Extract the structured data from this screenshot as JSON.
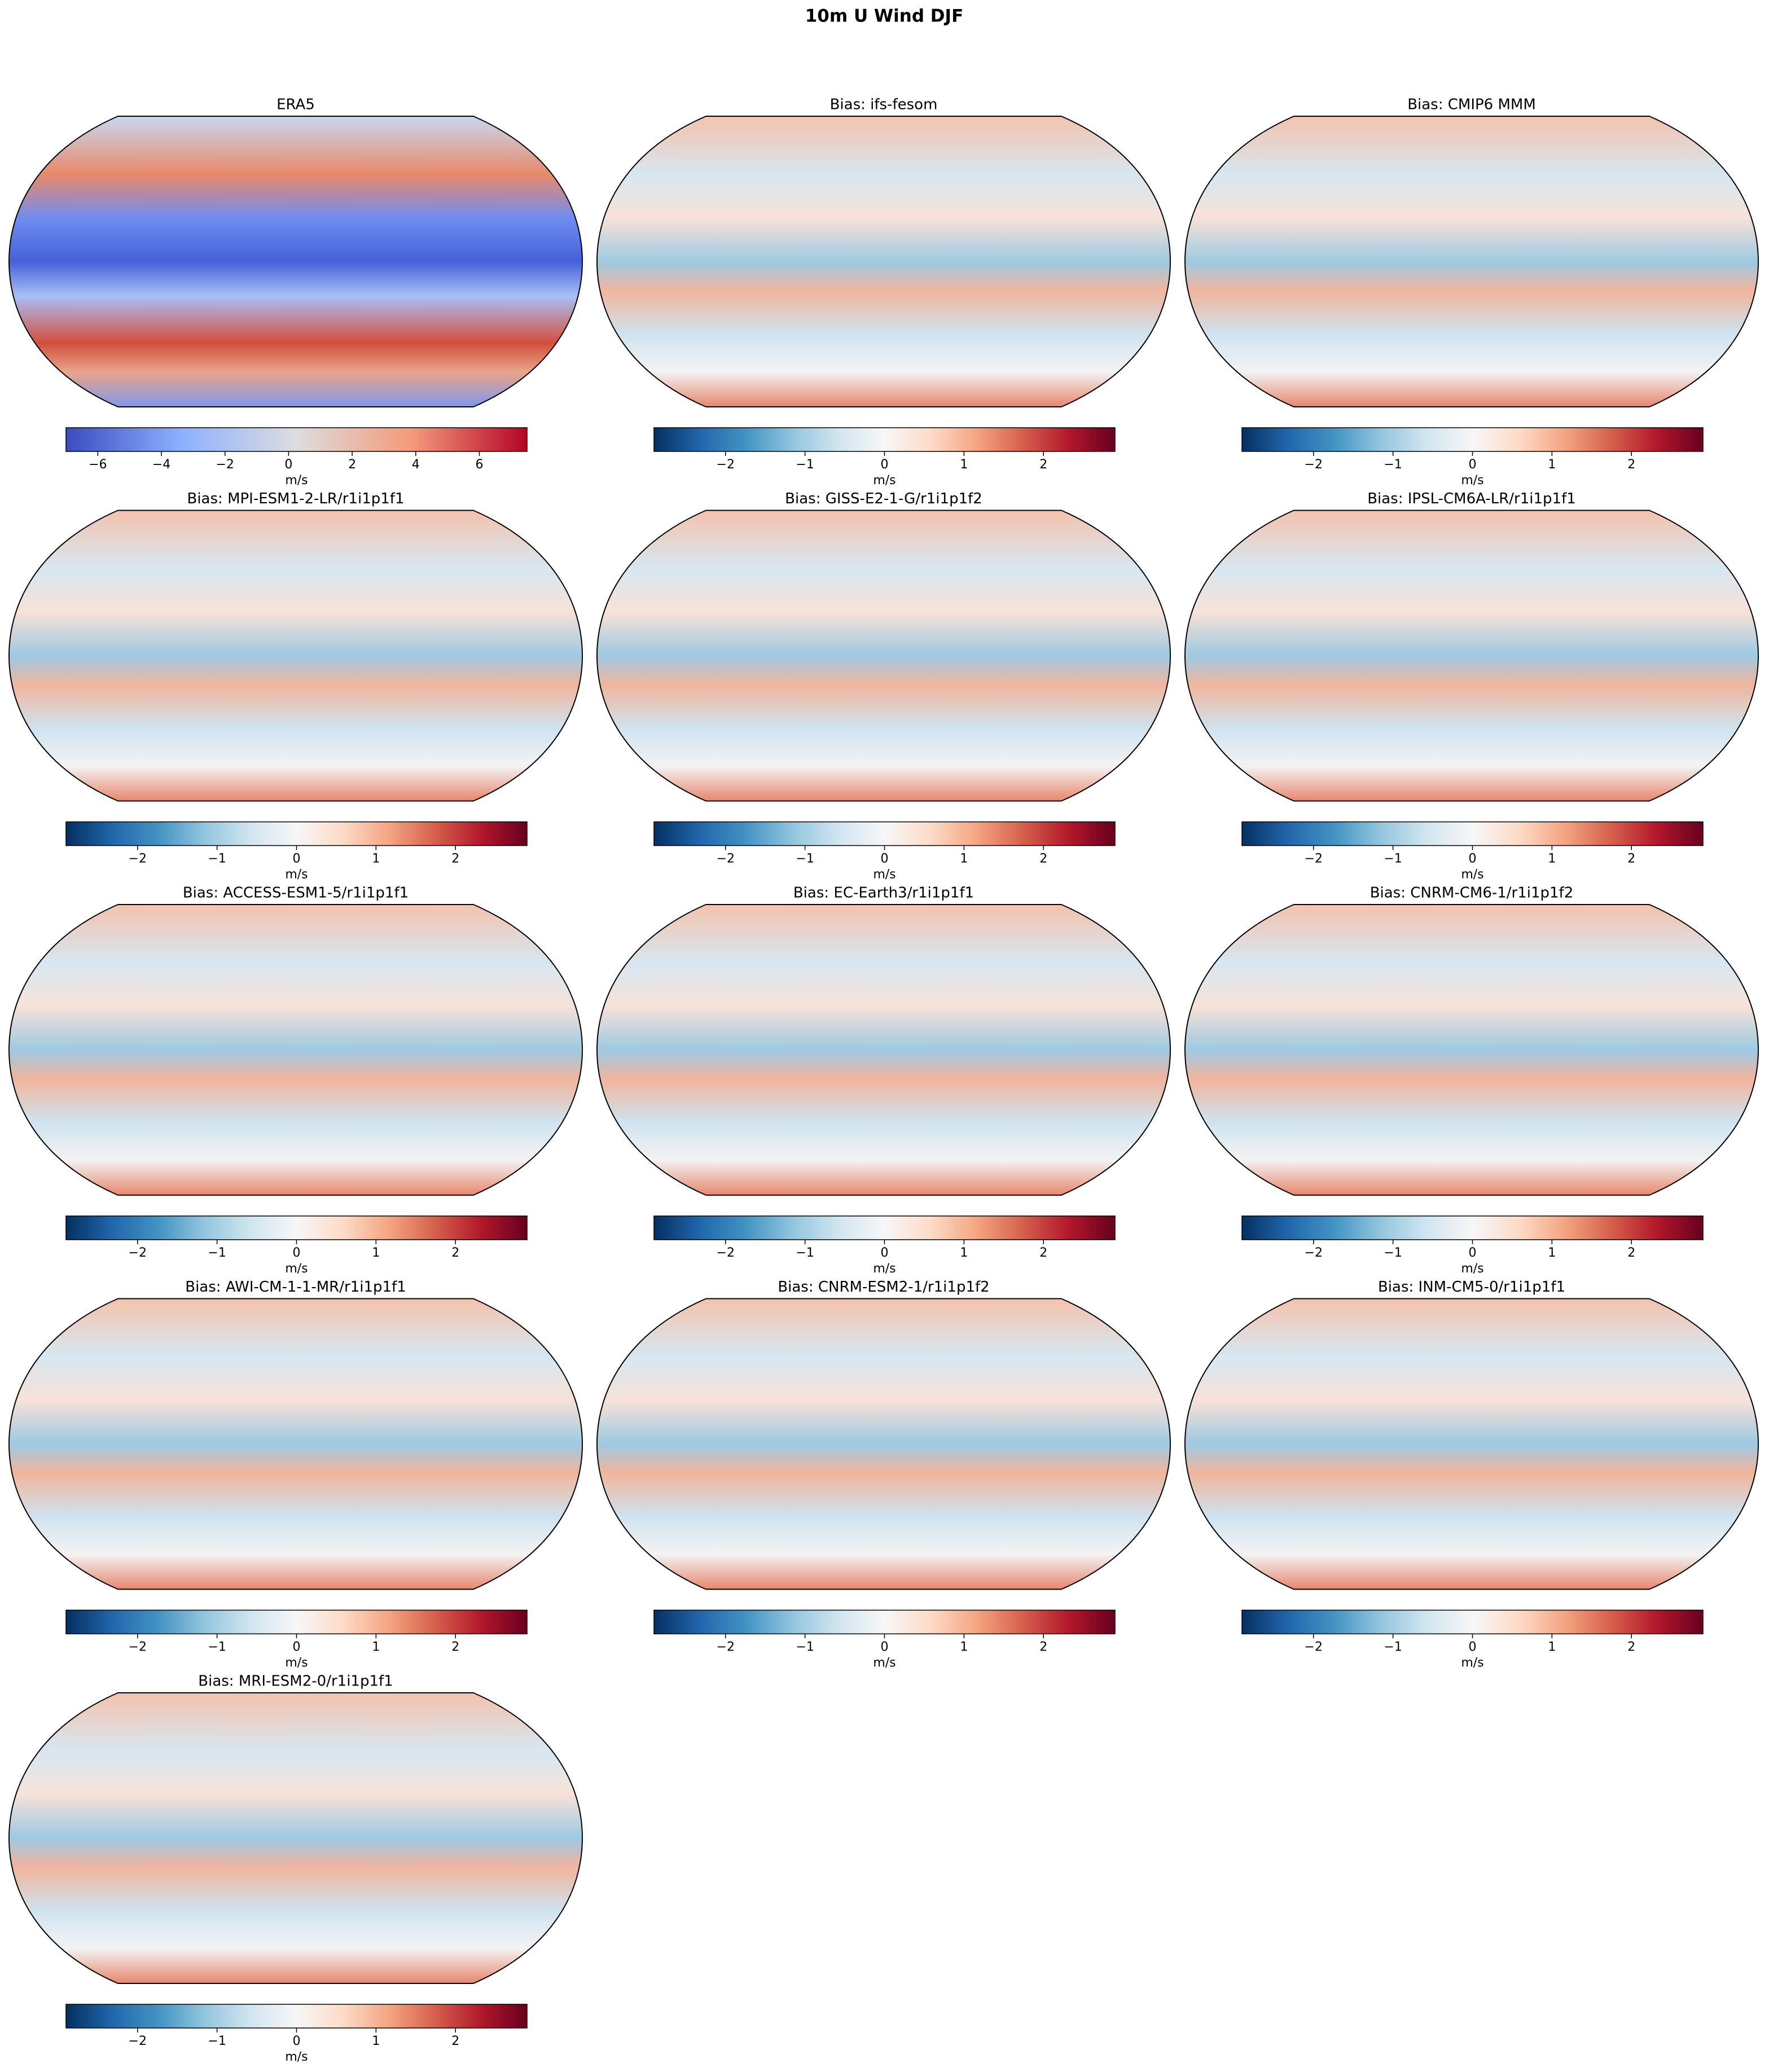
{
  "title": "10m U Wind DJF",
  "panels": [
    {
      "title": "ERA5",
      "colorbar": {
        "label": "m/s",
        "colors": [
          "#3b4cc0",
          "#8db0fe",
          "#dddddd",
          "#f49a7b",
          "#b40426"
        ],
        "lim": [
          -7.0,
          7.5
        ],
        "ticks": [
          {
            "value": -6,
            "label": "−6"
          },
          {
            "value": -4,
            "label": "−4"
          },
          {
            "value": -2,
            "label": "−2"
          },
          0,
          2,
          4,
          6
        ]
      }
    },
    {
      "title": "Bias: ifs-fesom",
      "colorbar": {
        "label": "m/s",
        "colors": [
          "#053061",
          "#2166ac",
          "#4393c3",
          "#92c5de",
          "#d1e5f0",
          "#f7f7f7",
          "#fddbc7",
          "#f4a582",
          "#d6604d",
          "#b2182b",
          "#67001f"
        ],
        "lim": [
          -2.9,
          2.9
        ],
        "ticks": [
          {
            "value": -2,
            "label": "−2"
          },
          {
            "value": -1,
            "label": "−1"
          },
          0,
          1,
          2
        ]
      }
    },
    {
      "title": "Bias: CMIP6 MMM",
      "colorbar": {
        "label": "m/s",
        "colors": [
          "#053061",
          "#2166ac",
          "#4393c3",
          "#92c5de",
          "#d1e5f0",
          "#f7f7f7",
          "#fddbc7",
          "#f4a582",
          "#d6604d",
          "#b2182b",
          "#67001f"
        ],
        "lim": [
          -2.9,
          2.9
        ],
        "ticks": [
          {
            "value": -2,
            "label": "−2"
          },
          {
            "value": -1,
            "label": "−1"
          },
          0,
          1,
          2
        ]
      }
    },
    {
      "title": "Bias: MPI-ESM1-2-LR/r1i1p1f1",
      "colorbar": {
        "label": "m/s",
        "colors": [
          "#053061",
          "#2166ac",
          "#4393c3",
          "#92c5de",
          "#d1e5f0",
          "#f7f7f7",
          "#fddbc7",
          "#f4a582",
          "#d6604d",
          "#b2182b",
          "#67001f"
        ],
        "lim": [
          -2.9,
          2.9
        ],
        "ticks": [
          {
            "value": -2,
            "label": "−2"
          },
          {
            "value": -1,
            "label": "−1"
          },
          0,
          1,
          2
        ]
      }
    },
    {
      "title": "Bias: GISS-E2-1-G/r1i1p1f2",
      "colorbar": {
        "label": "m/s",
        "colors": [
          "#053061",
          "#2166ac",
          "#4393c3",
          "#92c5de",
          "#d1e5f0",
          "#f7f7f7",
          "#fddbc7",
          "#f4a582",
          "#d6604d",
          "#b2182b",
          "#67001f"
        ],
        "lim": [
          -2.9,
          2.9
        ],
        "ticks": [
          {
            "value": -2,
            "label": "−2"
          },
          {
            "value": -1,
            "label": "−1"
          },
          0,
          1,
          2
        ]
      }
    },
    {
      "title": "Bias: IPSL-CM6A-LR/r1i1p1f1",
      "colorbar": {
        "label": "m/s",
        "colors": [
          "#053061",
          "#2166ac",
          "#4393c3",
          "#92c5de",
          "#d1e5f0",
          "#f7f7f7",
          "#fddbc7",
          "#f4a582",
          "#d6604d",
          "#b2182b",
          "#67001f"
        ],
        "lim": [
          -2.9,
          2.9
        ],
        "ticks": [
          {
            "value": -2,
            "label": "−2"
          },
          {
            "value": -1,
            "label": "−1"
          },
          0,
          1,
          2
        ]
      }
    },
    {
      "title": "Bias: ACCESS-ESM1-5/r1i1p1f1",
      "colorbar": {
        "label": "m/s",
        "colors": [
          "#053061",
          "#2166ac",
          "#4393c3",
          "#92c5de",
          "#d1e5f0",
          "#f7f7f7",
          "#fddbc7",
          "#f4a582",
          "#d6604d",
          "#b2182b",
          "#67001f"
        ],
        "lim": [
          -2.9,
          2.9
        ],
        "ticks": [
          {
            "value": -2,
            "label": "−2"
          },
          {
            "value": -1,
            "label": "−1"
          },
          0,
          1,
          2
        ]
      }
    },
    {
      "title": "Bias: EC-Earth3/r1i1p1f1",
      "colorbar": {
        "label": "m/s",
        "colors": [
          "#053061",
          "#2166ac",
          "#4393c3",
          "#92c5de",
          "#d1e5f0",
          "#f7f7f7",
          "#fddbc7",
          "#f4a582",
          "#d6604d",
          "#b2182b",
          "#67001f"
        ],
        "lim": [
          -2.9,
          2.9
        ],
        "ticks": [
          {
            "value": -2,
            "label": "−2"
          },
          {
            "value": -1,
            "label": "−1"
          },
          0,
          1,
          2
        ]
      }
    },
    {
      "title": "Bias: CNRM-CM6-1/r1i1p1f2",
      "colorbar": {
        "label": "m/s",
        "colors": [
          "#053061",
          "#2166ac",
          "#4393c3",
          "#92c5de",
          "#d1e5f0",
          "#f7f7f7",
          "#fddbc7",
          "#f4a582",
          "#d6604d",
          "#b2182b",
          "#67001f"
        ],
        "lim": [
          -2.9,
          2.9
        ],
        "ticks": [
          {
            "value": -2,
            "label": "−2"
          },
          {
            "value": -1,
            "label": "−1"
          },
          0,
          1,
          2
        ]
      }
    },
    {
      "title": "Bias: AWI-CM-1-1-MR/r1i1p1f1",
      "colorbar": {
        "label": "m/s",
        "colors": [
          "#053061",
          "#2166ac",
          "#4393c3",
          "#92c5de",
          "#d1e5f0",
          "#f7f7f7",
          "#fddbc7",
          "#f4a582",
          "#d6604d",
          "#b2182b",
          "#67001f"
        ],
        "lim": [
          -2.9,
          2.9
        ],
        "ticks": [
          {
            "value": -2,
            "label": "−2"
          },
          {
            "value": -1,
            "label": "−1"
          },
          0,
          1,
          2
        ]
      }
    },
    {
      "title": "Bias: CNRM-ESM2-1/r1i1p1f2",
      "colorbar": {
        "label": "m/s",
        "colors": [
          "#053061",
          "#2166ac",
          "#4393c3",
          "#92c5de",
          "#d1e5f0",
          "#f7f7f7",
          "#fddbc7",
          "#f4a582",
          "#d6604d",
          "#b2182b",
          "#67001f"
        ],
        "lim": [
          -2.9,
          2.9
        ],
        "ticks": [
          {
            "value": -2,
            "label": "−2"
          },
          {
            "value": -1,
            "label": "−1"
          },
          0,
          1,
          2
        ]
      }
    },
    {
      "title": "Bias: INM-CM5-0/r1i1p1f1",
      "colorbar": {
        "label": "m/s",
        "colors": [
          "#053061",
          "#2166ac",
          "#4393c3",
          "#92c5de",
          "#d1e5f0",
          "#f7f7f7",
          "#fddbc7",
          "#f4a582",
          "#d6604d",
          "#b2182b",
          "#67001f"
        ],
        "lim": [
          -2.9,
          2.9
        ],
        "ticks": [
          {
            "value": -2,
            "label": "−2"
          },
          {
            "value": -1,
            "label": "−1"
          },
          0,
          1,
          2
        ]
      }
    },
    {
      "title": "Bias: MRI-ESM2-0/r1i1p1f1",
      "colorbar": {
        "label": "m/s",
        "colors": [
          "#053061",
          "#2166ac",
          "#4393c3",
          "#92c5de",
          "#d1e5f0",
          "#f7f7f7",
          "#fddbc7",
          "#f4a582",
          "#d6604d",
          "#b2182b",
          "#67001f"
        ],
        "lim": [
          -2.9,
          2.9
        ],
        "ticks": [
          {
            "value": -2,
            "label": "−2"
          },
          {
            "value": -1,
            "label": "−1"
          },
          0,
          1,
          2
        ]
      }
    }
  ]
}
